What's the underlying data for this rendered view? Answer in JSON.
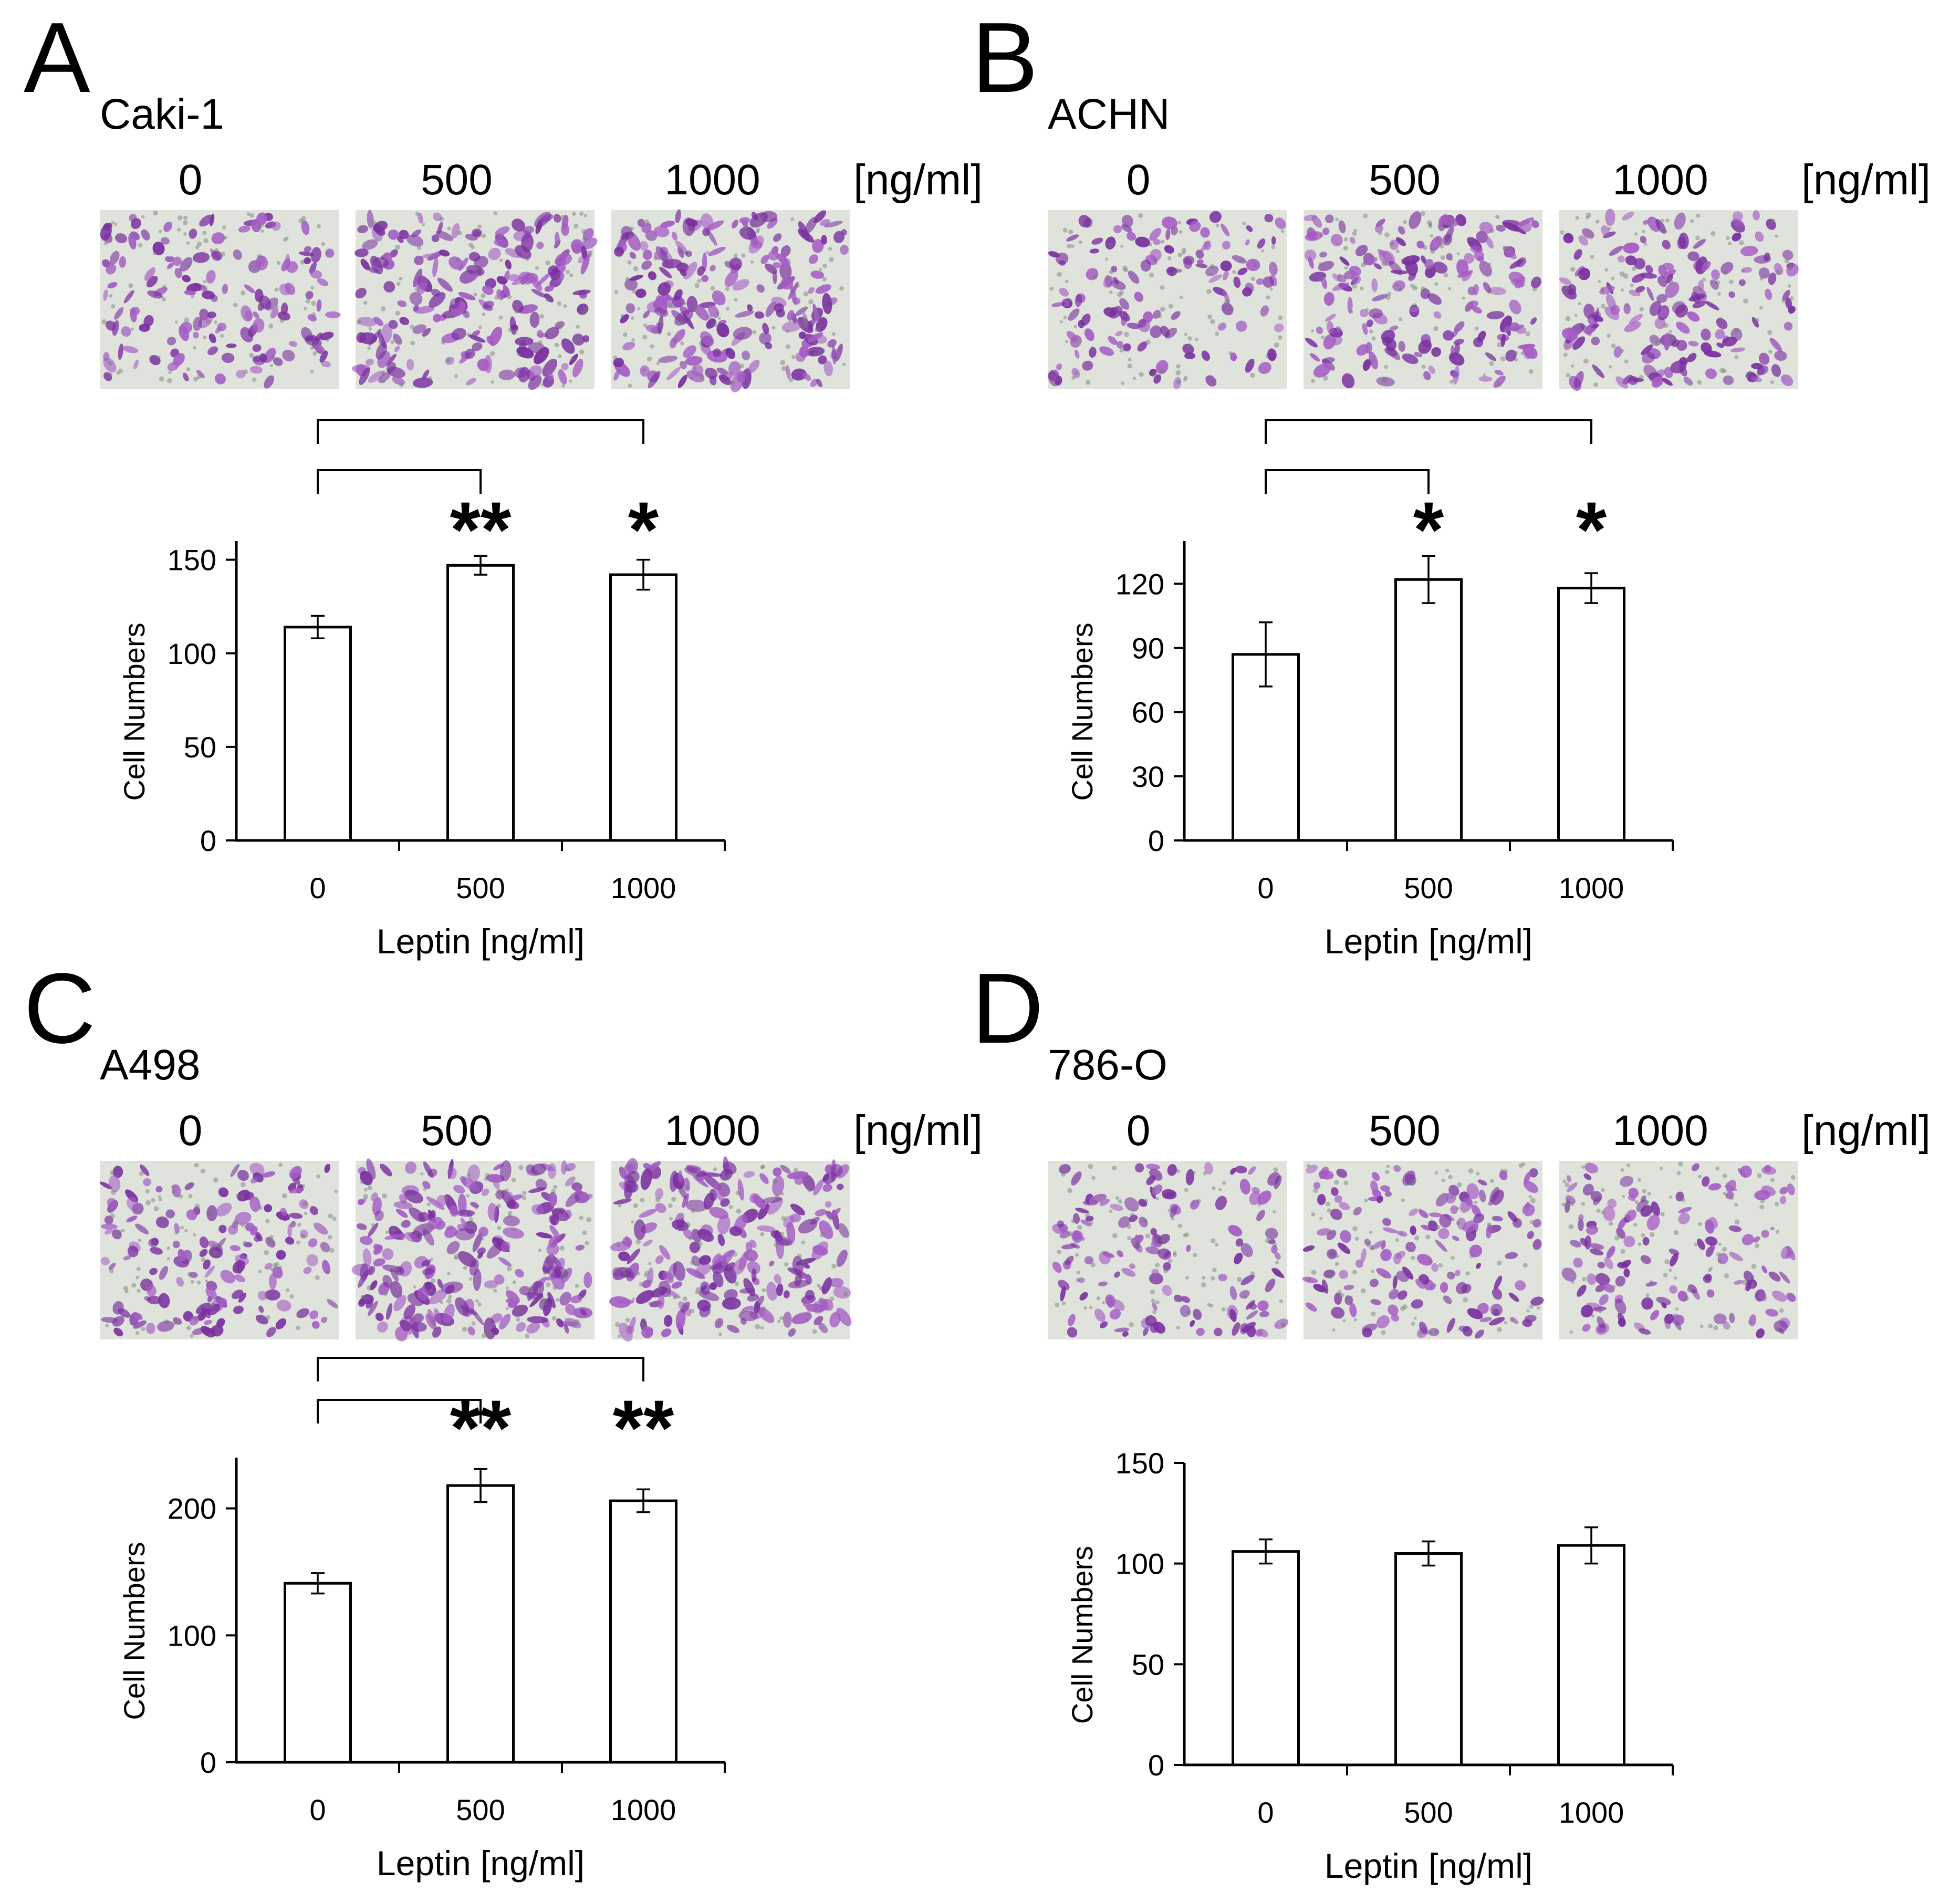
{
  "chart_data": [
    {
      "type": "bar",
      "panel": "A",
      "cell_line": "Caki-1",
      "image_row": {
        "labels": [
          "0",
          "500",
          "1000"
        ],
        "unit": "[ng/ml]",
        "stain_density": [
          0.85,
          1.15,
          1.2
        ]
      },
      "categories": [
        "0",
        "500",
        "1000"
      ],
      "values": [
        114,
        147,
        142
      ],
      "errors": [
        6,
        5,
        8
      ],
      "significance": [
        "",
        "**",
        "*"
      ],
      "xlabel": "Leptin [ng/ml]",
      "ylabel": "Cell Numbers",
      "ylim": [
        0,
        160
      ],
      "yticks": [
        0,
        50,
        100,
        150
      ],
      "grid": false
    },
    {
      "type": "bar",
      "panel": "B",
      "cell_line": "ACHN",
      "image_row": {
        "labels": [
          "0",
          "500",
          "1000"
        ],
        "unit": "[ng/ml]",
        "stain_density": [
          0.75,
          1.0,
          0.95
        ]
      },
      "categories": [
        "0",
        "500",
        "1000"
      ],
      "values": [
        87,
        122,
        118
      ],
      "errors": [
        15,
        11,
        7
      ],
      "significance": [
        "",
        "*",
        "*"
      ],
      "xlabel": "Leptin [ng/ml]",
      "ylabel": "Cell Numbers",
      "ylim": [
        0,
        140
      ],
      "yticks": [
        0,
        30,
        60,
        90,
        120
      ],
      "grid": false
    },
    {
      "type": "bar",
      "panel": "C",
      "cell_line": "A498",
      "image_row": {
        "labels": [
          "0",
          "500",
          "1000"
        ],
        "unit": "[ng/ml]",
        "stain_density": [
          0.9,
          1.3,
          1.25
        ]
      },
      "categories": [
        "0",
        "500",
        "1000"
      ],
      "values": [
        141,
        218,
        206
      ],
      "errors": [
        8,
        13,
        9
      ],
      "significance": [
        "",
        "**",
        "**"
      ],
      "xlabel": "Leptin [ng/ml]",
      "ylabel": "Cell Numbers",
      "ylim": [
        0,
        240
      ],
      "yticks": [
        0,
        100,
        200
      ],
      "grid": false
    },
    {
      "type": "bar",
      "panel": "D",
      "cell_line": "786-O",
      "image_row": {
        "labels": [
          "0",
          "500",
          "1000"
        ],
        "unit": "[ng/ml]",
        "stain_density": [
          0.8,
          0.85,
          0.8
        ]
      },
      "categories": [
        "0",
        "500",
        "1000"
      ],
      "values": [
        106,
        105,
        109
      ],
      "errors": [
        6,
        6,
        9
      ],
      "significance": [
        "",
        "",
        ""
      ],
      "xlabel": "Leptin [ng/ml]",
      "ylabel": "Cell Numbers",
      "ylim": [
        0,
        150
      ],
      "yticks": [
        0,
        50,
        100,
        150
      ],
      "grid": false
    }
  ],
  "colors": {
    "bar_fill": "#ffffff",
    "bar_stroke": "#000000",
    "stain_light": "#dfe3dc",
    "stain_dark": "#7a2fa0",
    "stain_mid": "#a45cc4"
  }
}
